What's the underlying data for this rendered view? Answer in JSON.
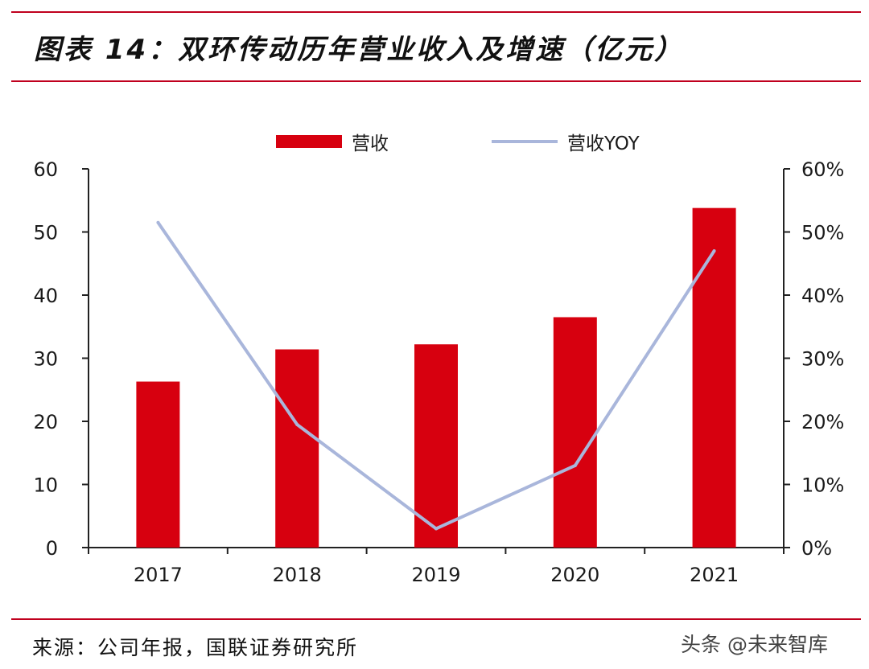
{
  "title": "图表 14：双环传动历年营业收入及增速（亿元）",
  "source": "来源：公司年报，国联证券研究所",
  "watermark": "头条 @未来智库",
  "colors": {
    "accent": "#c0001e",
    "bar": "#d7000f",
    "line": "#a9b6db"
  },
  "chart_data": {
    "type": "bar+line",
    "title": "图表 14：双环传动历年营业收入及增速（亿元）",
    "categories": [
      "2017",
      "2018",
      "2019",
      "2020",
      "2021"
    ],
    "series": [
      {
        "name": "营收",
        "type": "bar",
        "axis": "left",
        "values": [
          26.3,
          31.4,
          32.2,
          36.5,
          53.8
        ]
      },
      {
        "name": "营收YOY",
        "type": "line",
        "axis": "right",
        "values": [
          0.515,
          0.195,
          0.03,
          0.13,
          0.47
        ]
      }
    ],
    "yleft": {
      "min": 0,
      "max": 60,
      "ticks": [
        0,
        10,
        20,
        30,
        40,
        50,
        60
      ]
    },
    "yright": {
      "min": 0,
      "max": 0.6,
      "ticks": [
        "0%",
        "10%",
        "20%",
        "30%",
        "40%",
        "50%",
        "60%"
      ]
    },
    "legend": {
      "position": "top",
      "entries": [
        "营收",
        "营收YOY"
      ]
    },
    "grid": false
  }
}
